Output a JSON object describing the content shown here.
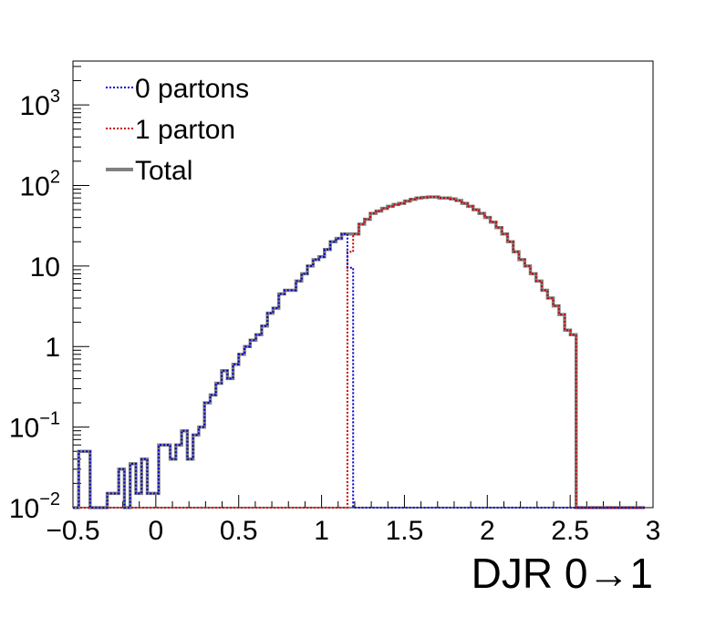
{
  "chart_data": {
    "type": "histogram",
    "xlabel": "DJR 0→1",
    "ylabel": "",
    "xlim": [
      -0.5,
      3
    ],
    "ylim": [
      0.01,
      3500
    ],
    "yscale": "log",
    "x_tick_labels": [
      "−0.5",
      "0",
      "0.5",
      "1",
      "1.5",
      "2",
      "2.5",
      "3"
    ],
    "x_tick_values": [
      -0.5,
      0,
      0.5,
      1,
      1.5,
      2,
      2.5,
      3
    ],
    "y_tick_labels": [
      {
        "value": 0.01,
        "base": "10",
        "exp": "−2"
      },
      {
        "value": 0.1,
        "base": "10",
        "exp": "−1"
      },
      {
        "value": 1,
        "base": "1",
        "exp": ""
      },
      {
        "value": 10,
        "base": "10",
        "exp": ""
      },
      {
        "value": 100,
        "base": "10",
        "exp": "2"
      },
      {
        "value": 1000,
        "base": "10",
        "exp": "3"
      }
    ],
    "legend_position": "top-left",
    "bin_edges": [
      -0.5,
      -0.4655,
      -0.431,
      -0.3965,
      -0.362,
      -0.3275,
      -0.293,
      -0.2585,
      -0.224,
      -0.1895,
      -0.155,
      -0.1205,
      -0.086,
      -0.0515,
      -0.017,
      0.0175,
      0.052,
      0.0865,
      0.121,
      0.1555,
      0.19,
      0.2245,
      0.259,
      0.2935,
      0.328,
      0.3625,
      0.397,
      0.4315,
      0.466,
      0.5005,
      0.535,
      0.5695,
      0.604,
      0.6385,
      0.673,
      0.7075,
      0.742,
      0.7765,
      0.811,
      0.8455,
      0.88,
      0.9145,
      0.949,
      0.9835,
      1.018,
      1.0525,
      1.087,
      1.1215,
      1.156,
      1.1905,
      1.225,
      1.2595,
      1.294,
      1.3285,
      1.363,
      1.3975,
      1.432,
      1.4665,
      1.501,
      1.5355,
      1.57,
      1.6045,
      1.639,
      1.6735,
      1.708,
      1.7425,
      1.777,
      1.8115,
      1.846,
      1.8805,
      1.915,
      1.9495,
      1.984,
      2.0185,
      2.053,
      2.0875,
      2.122,
      2.1565,
      2.191,
      2.2255,
      2.26,
      2.2945,
      2.329,
      2.3635,
      2.398,
      2.4325,
      2.467,
      2.5015,
      2.536,
      2.5705,
      2.605,
      2.6395,
      2.674,
      2.7085,
      2.743,
      2.7775,
      2.812,
      2.8465,
      2.881,
      2.9155,
      2.95,
      3.0
    ],
    "series": [
      {
        "name": "0 partons",
        "color": "#0000cc",
        "style": "dotted",
        "values": [
          0.01,
          0.05,
          0.05,
          0.01,
          0.01,
          0.01,
          0.015,
          0.015,
          0.03,
          0.01,
          0.035,
          0.015,
          0.04,
          0.015,
          0.015,
          0.06,
          0.06,
          0.04,
          0.06,
          0.09,
          0.04,
          0.08,
          0.1,
          0.2,
          0.25,
          0.35,
          0.5,
          0.4,
          0.6,
          0.8,
          1.0,
          1.2,
          1.4,
          1.8,
          2.6,
          3.0,
          4.5,
          5.0,
          5.0,
          6.5,
          8.0,
          10,
          12,
          13,
          16,
          20,
          22,
          25,
          9.5,
          0.01,
          0.01,
          0.01,
          0.01,
          0.01,
          0.01,
          0.01,
          0.01,
          0.01,
          0.01,
          0.01,
          0.01,
          0.01,
          0.01,
          0.01,
          0.01,
          0.01,
          0.01,
          0.01,
          0.01,
          0.01,
          0.01,
          0.01,
          0.01,
          0.01,
          0.01,
          0.01,
          0.01,
          0.01,
          0.01,
          0.01,
          0.01,
          0.01,
          0.01,
          0.01,
          0.01,
          0.01,
          0.01,
          0.01,
          0.01,
          0.01,
          0.01,
          0.01,
          0.01,
          0.01,
          0.01,
          0.01,
          0.01,
          0.01,
          0.01,
          0.01
        ]
      },
      {
        "name": "1 parton",
        "color": "#cc0000",
        "style": "dotted",
        "values": [
          0.01,
          0.01,
          0.01,
          0.01,
          0.01,
          0.01,
          0.01,
          0.01,
          0.01,
          0.01,
          0.01,
          0.01,
          0.01,
          0.01,
          0.01,
          0.01,
          0.01,
          0.01,
          0.01,
          0.01,
          0.01,
          0.01,
          0.01,
          0.01,
          0.01,
          0.01,
          0.01,
          0.01,
          0.01,
          0.01,
          0.01,
          0.01,
          0.01,
          0.01,
          0.01,
          0.01,
          0.01,
          0.01,
          0.01,
          0.01,
          0.01,
          0.01,
          0.01,
          0.01,
          0.01,
          0.01,
          0.01,
          0.01,
          15,
          25,
          33,
          38,
          45,
          48,
          52,
          55,
          58,
          60,
          64,
          67,
          70,
          71,
          72,
          72,
          70,
          70,
          68,
          65,
          60,
          55,
          50,
          45,
          40,
          35,
          30,
          25,
          20,
          15,
          12,
          10,
          8,
          6.5,
          5,
          4,
          3.2,
          2.5,
          1.6,
          1.4,
          0.01,
          0.01,
          0.01,
          0.01,
          0.01,
          0.01,
          0.01,
          0.01,
          0.01,
          0.01,
          0.01,
          0.01
        ]
      },
      {
        "name": "Total",
        "color": "#808080",
        "style": "solid",
        "values": [
          0.01,
          0.05,
          0.05,
          0.01,
          0.01,
          0.01,
          0.015,
          0.015,
          0.03,
          0.01,
          0.035,
          0.015,
          0.04,
          0.015,
          0.015,
          0.06,
          0.06,
          0.04,
          0.06,
          0.09,
          0.04,
          0.08,
          0.1,
          0.2,
          0.25,
          0.35,
          0.5,
          0.4,
          0.6,
          0.8,
          1.0,
          1.2,
          1.4,
          1.8,
          2.6,
          3.0,
          4.5,
          5.0,
          5.0,
          6.5,
          8.0,
          10,
          12,
          13,
          16,
          20,
          22,
          25,
          25,
          25,
          33,
          38,
          45,
          48,
          52,
          55,
          58,
          60,
          64,
          67,
          70,
          71,
          72,
          72,
          70,
          70,
          68,
          65,
          60,
          55,
          50,
          45,
          40,
          35,
          30,
          25,
          20,
          15,
          12,
          10,
          8,
          6.5,
          5,
          4,
          3.2,
          2.5,
          1.6,
          1.4,
          0.01,
          0.01,
          0.01,
          0.01,
          0.01,
          0.01,
          0.01,
          0.01,
          0.01,
          0.01,
          0.01,
          0.01
        ]
      }
    ]
  }
}
